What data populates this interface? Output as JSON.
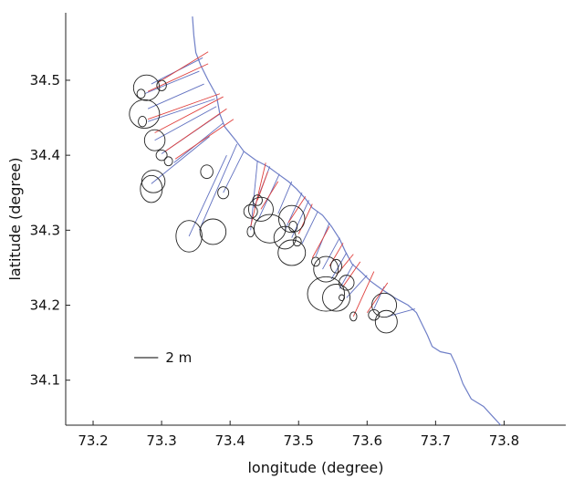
{
  "chart_data": {
    "type": "map",
    "xlabel": "longitude (degree)",
    "ylabel": "latitude (degree)",
    "xlim": [
      73.16,
      73.89
    ],
    "ylim": [
      34.04,
      34.59
    ],
    "xticks": [
      "73.2",
      "73.3",
      "73.4",
      "73.5",
      "73.6",
      "73.7",
      "73.8"
    ],
    "yticks": [
      "34.1",
      "34.2",
      "34.3",
      "34.4",
      "34.5"
    ],
    "grid": false,
    "scale_label": "2 m",
    "colors": {
      "coast": "#6f7fc7",
      "red": "#e0413e",
      "blue": "#6070c0",
      "ellipse": "#222222",
      "axis": "#222222"
    },
    "coastline": [
      [
        73.345,
        34.585
      ],
      [
        73.347,
        34.56
      ],
      [
        73.35,
        34.537
      ],
      [
        73.357,
        34.52
      ],
      [
        73.368,
        34.5
      ],
      [
        73.38,
        34.48
      ],
      [
        73.385,
        34.455
      ],
      [
        73.392,
        34.438
      ],
      [
        73.408,
        34.42
      ],
      [
        73.42,
        34.405
      ],
      [
        73.438,
        34.393
      ],
      [
        73.455,
        34.385
      ],
      [
        73.47,
        34.375
      ],
      [
        73.485,
        34.365
      ],
      [
        73.497,
        34.355
      ],
      [
        73.51,
        34.342
      ],
      [
        73.52,
        34.33
      ],
      [
        73.535,
        34.32
      ],
      [
        73.548,
        34.305
      ],
      [
        73.56,
        34.288
      ],
      [
        73.568,
        34.272
      ],
      [
        73.578,
        34.255
      ],
      [
        73.593,
        34.243
      ],
      [
        73.605,
        34.232
      ],
      [
        73.62,
        34.222
      ],
      [
        73.64,
        34.21
      ],
      [
        73.66,
        34.2
      ],
      [
        73.672,
        34.19
      ],
      [
        73.68,
        34.175
      ],
      [
        73.688,
        34.16
      ],
      [
        73.695,
        34.145
      ],
      [
        73.707,
        34.138
      ],
      [
        73.722,
        34.135
      ],
      [
        73.73,
        34.12
      ],
      [
        73.74,
        34.095
      ],
      [
        73.752,
        34.075
      ],
      [
        73.77,
        34.065
      ],
      [
        73.785,
        34.05
      ],
      [
        73.795,
        34.04
      ]
    ],
    "blue_rays": [
      [
        73.285,
        34.495,
        73.36,
        34.53
      ],
      [
        73.275,
        34.482,
        73.355,
        34.512
      ],
      [
        73.28,
        34.462,
        73.362,
        34.495
      ],
      [
        73.28,
        34.445,
        73.378,
        34.475
      ],
      [
        73.29,
        34.42,
        73.38,
        34.465
      ],
      [
        73.3,
        34.402,
        73.385,
        34.455
      ],
      [
        73.318,
        34.39,
        73.39,
        34.443
      ],
      [
        73.285,
        34.362,
        73.37,
        34.425
      ],
      [
        73.34,
        34.292,
        73.395,
        34.4
      ],
      [
        73.355,
        34.3,
        73.41,
        34.415
      ],
      [
        73.39,
        34.35,
        73.42,
        34.405
      ],
      [
        73.43,
        34.3,
        73.44,
        34.393
      ],
      [
        73.435,
        34.33,
        73.458,
        34.385
      ],
      [
        73.44,
        34.312,
        73.472,
        34.375
      ],
      [
        73.47,
        34.322,
        73.49,
        34.365
      ],
      [
        73.48,
        34.3,
        73.505,
        34.35
      ],
      [
        73.49,
        34.29,
        73.515,
        34.34
      ],
      [
        73.505,
        34.282,
        73.528,
        34.325
      ],
      [
        73.525,
        34.265,
        73.545,
        34.31
      ],
      [
        73.535,
        34.248,
        73.56,
        34.29
      ],
      [
        73.548,
        34.235,
        73.57,
        34.27
      ],
      [
        73.56,
        34.222,
        73.58,
        34.255
      ],
      [
        73.57,
        34.21,
        73.6,
        34.24
      ],
      [
        73.61,
        34.195,
        73.625,
        34.225
      ],
      [
        73.63,
        34.185,
        73.67,
        34.195
      ]
    ],
    "red_rays": [
      [
        73.295,
        34.497,
        73.368,
        34.538
      ],
      [
        73.28,
        34.485,
        73.368,
        34.522
      ],
      [
        73.28,
        34.448,
        73.385,
        34.482
      ],
      [
        73.29,
        34.43,
        73.39,
        34.478
      ],
      [
        73.305,
        34.405,
        73.395,
        34.462
      ],
      [
        73.32,
        34.395,
        73.405,
        34.448
      ],
      [
        73.43,
        34.305,
        73.452,
        34.39
      ],
      [
        73.44,
        34.34,
        73.455,
        34.378
      ],
      [
        73.445,
        34.328,
        73.47,
        34.365
      ],
      [
        73.485,
        34.31,
        73.51,
        34.345
      ],
      [
        73.5,
        34.295,
        73.52,
        34.335
      ],
      [
        73.52,
        34.263,
        73.545,
        34.305
      ],
      [
        73.545,
        34.252,
        73.565,
        34.283
      ],
      [
        73.555,
        34.24,
        73.58,
        34.268
      ],
      [
        73.565,
        34.225,
        73.59,
        34.258
      ],
      [
        73.58,
        34.185,
        73.61,
        34.245
      ],
      [
        73.6,
        34.19,
        73.63,
        34.23
      ]
    ],
    "ellipses": [
      [
        73.278,
        34.49,
        0.019,
        0.017
      ],
      [
        73.27,
        34.482,
        0.006,
        0.006
      ],
      [
        73.3,
        34.493,
        0.007,
        0.007
      ],
      [
        73.275,
        34.455,
        0.022,
        0.019
      ],
      [
        73.272,
        34.445,
        0.006,
        0.007
      ],
      [
        73.29,
        34.42,
        0.015,
        0.014
      ],
      [
        73.3,
        34.4,
        0.008,
        0.007
      ],
      [
        73.31,
        34.392,
        0.006,
        0.006
      ],
      [
        73.288,
        34.365,
        0.017,
        0.015
      ],
      [
        73.285,
        34.355,
        0.016,
        0.018
      ],
      [
        73.366,
        34.378,
        0.009,
        0.009
      ],
      [
        73.39,
        34.35,
        0.008,
        0.008
      ],
      [
        73.34,
        34.292,
        0.019,
        0.021
      ],
      [
        73.375,
        34.298,
        0.019,
        0.017
      ],
      [
        73.43,
        34.325,
        0.01,
        0.009
      ],
      [
        73.44,
        34.34,
        0.007,
        0.007
      ],
      [
        73.445,
        34.328,
        0.018,
        0.016
      ],
      [
        73.43,
        34.298,
        0.005,
        0.007
      ],
      [
        73.458,
        34.302,
        0.023,
        0.019
      ],
      [
        73.49,
        34.315,
        0.019,
        0.018
      ],
      [
        73.492,
        34.305,
        0.006,
        0.007
      ],
      [
        73.48,
        34.29,
        0.016,
        0.015
      ],
      [
        73.498,
        34.285,
        0.006,
        0.006
      ],
      [
        73.49,
        34.27,
        0.02,
        0.017
      ],
      [
        73.525,
        34.258,
        0.006,
        0.006
      ],
      [
        73.54,
        34.248,
        0.018,
        0.017
      ],
      [
        73.555,
        34.252,
        0.008,
        0.009
      ],
      [
        73.57,
        34.23,
        0.011,
        0.01
      ],
      [
        73.54,
        34.215,
        0.027,
        0.023
      ],
      [
        73.555,
        34.21,
        0.02,
        0.018
      ],
      [
        73.563,
        34.21,
        0.004,
        0.004
      ],
      [
        73.58,
        34.185,
        0.005,
        0.006
      ],
      [
        73.61,
        34.187,
        0.008,
        0.007
      ],
      [
        73.625,
        34.2,
        0.018,
        0.016
      ],
      [
        73.628,
        34.178,
        0.016,
        0.015
      ]
    ],
    "scale_bar": [
      73.26,
      73.295,
      34.13
    ]
  }
}
